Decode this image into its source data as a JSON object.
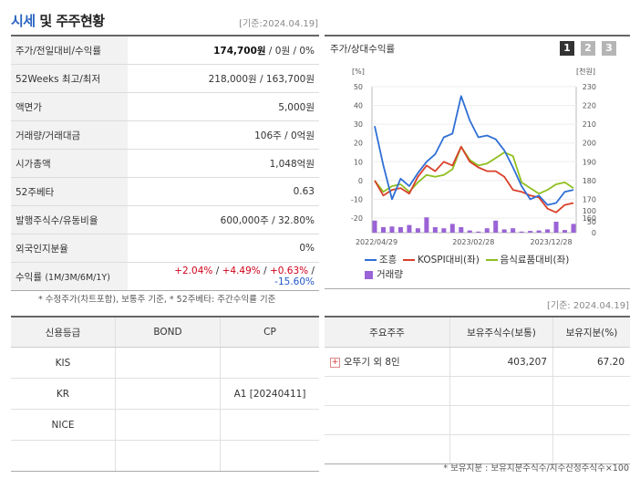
{
  "header": {
    "title_highlight": "시세",
    "title_rest": " 및 주주현황",
    "date": "[기준:2024.04.19]"
  },
  "quote": {
    "price_label": "주가/전일대비/수익률",
    "price_value": "174,700원",
    "price_rest": " / 0원 / 0%",
    "week52_label": "52Weeks 최고/최저",
    "week52_value": "218,000원 / 163,700원",
    "par_label": "액면가",
    "par_value": "5,000원",
    "volume_label": "거래량/거래대금",
    "volume_value": "106주 / 0억원",
    "mcap_label": "시가총액",
    "mcap_value": "1,048억원",
    "beta_label": "52주베타",
    "beta_value": "0.63",
    "shares_label": "발행주식수/유동비율",
    "shares_value": "600,000주 / 32.80%",
    "foreign_label": "외국인지분율",
    "foreign_value": "0%",
    "return_label": "수익률",
    "return_sub": "(1M/3M/6M/1Y)",
    "return_1m": "+2.04%",
    "return_3m": "+4.49%",
    "return_6m": "+0.63%",
    "return_1y": "-15.60%",
    "sep": " / "
  },
  "note1": "* 수정주가(차트포함), 보통주 기준, * 52주베타: 주간수익률 기준",
  "chart": {
    "title": "주가/상대수익률",
    "tabs": [
      "1",
      "2",
      "3"
    ],
    "colors": {
      "company": "#2f6fd6",
      "kospi": "#d9402a",
      "sector": "#8fbf1f",
      "volume": "#9a63d6"
    },
    "legend": {
      "company": "조흥",
      "kospi": "KOSPI대비(좌)",
      "sector": "음식료품대비(좌)",
      "volume": "거래량"
    }
  },
  "chart_data": {
    "type": "line",
    "left_unit": "[%]",
    "right_unit": "[천원]",
    "left_ticks": [
      "50",
      "40",
      "30",
      "20",
      "10",
      "0",
      "-10",
      "-20"
    ],
    "right_ticks": [
      "230",
      "220",
      "210",
      "200",
      "190",
      "180",
      "170",
      "160"
    ],
    "volume_ticks": [
      "100",
      "50",
      "0"
    ],
    "x_labels": [
      "2022/04/29",
      "2023/02/28",
      "2023/12/28"
    ],
    "ylim_left": [
      -20,
      50
    ],
    "ylim_volume": [
      0,
      100
    ],
    "series": [
      {
        "name": "조흥",
        "values": [
          29,
          8,
          -10,
          1,
          -3,
          4,
          10,
          14,
          23,
          25,
          45,
          32,
          23,
          24,
          22,
          16,
          7,
          -3,
          -10,
          -8,
          -13,
          -12,
          -6,
          -5
        ]
      },
      {
        "name": "KOSPI대비(좌)",
        "values": [
          0,
          -8,
          -5,
          -4,
          -7,
          2,
          8,
          5,
          10,
          8,
          18,
          10,
          7,
          5,
          5,
          2,
          -5,
          -6,
          -8,
          -9,
          -15,
          -17,
          -13,
          -12
        ]
      },
      {
        "name": "음식료품대비(좌)",
        "values": [
          0,
          -6,
          -3,
          -2,
          -6,
          -1,
          3,
          2,
          3,
          6,
          18,
          11,
          8,
          9,
          12,
          15,
          13,
          -1,
          -4,
          -7,
          -5,
          -2,
          -1,
          -4
        ]
      },
      {
        "name": "거래량",
        "values": [
          55,
          25,
          28,
          25,
          35,
          20,
          70,
          25,
          20,
          40,
          25,
          10,
          5,
          20,
          55,
          15,
          20,
          5,
          8,
          10,
          15,
          50,
          12,
          40
        ]
      }
    ]
  },
  "date2": "[기준: 2024.04.19]",
  "credit": {
    "headers": [
      "신용등급",
      "BOND",
      "CP"
    ],
    "rows": [
      [
        "KIS",
        "",
        ""
      ],
      [
        "KR",
        "",
        "A1  [20240411]"
      ],
      [
        "NICE",
        "",
        ""
      ],
      [
        "",
        "",
        ""
      ]
    ]
  },
  "holders": {
    "headers": [
      "주요주주",
      "보유주식수(보통)",
      "보유지분(%)"
    ],
    "rows": [
      [
        "오뚜기 외 8인",
        "403,207",
        "67.20"
      ],
      [
        "",
        "",
        ""
      ],
      [
        "",
        "",
        ""
      ],
      [
        "",
        "",
        ""
      ]
    ]
  },
  "note2": "* 보유지분 : 보유지분주식수/지수산정주식수×100"
}
